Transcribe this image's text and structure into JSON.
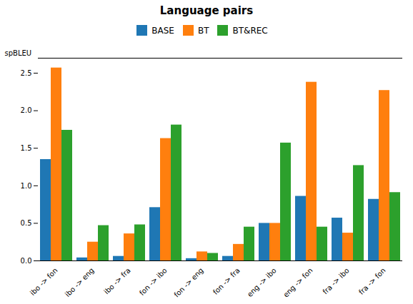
{
  "chart_data": {
    "type": "bar",
    "title": "Language pairs",
    "ylabel": "spBLEU",
    "categories": [
      "ibo -> fon",
      "ibo -> eng",
      "ibo -> fra",
      "fon -> ibo",
      "fon -> eng",
      "fon -> fra",
      "eng -> ibo",
      "eng -> fon",
      "fra -> ibo",
      "fra -> fon"
    ],
    "series": [
      {
        "name": "BASE",
        "color": "#1f77b4",
        "values": [
          1.35,
          0.04,
          0.06,
          0.71,
          0.03,
          0.06,
          0.5,
          0.86,
          0.57,
          0.82
        ]
      },
      {
        "name": "BT",
        "color": "#ff7f0e",
        "values": [
          2.57,
          0.25,
          0.36,
          1.63,
          0.12,
          0.22,
          0.5,
          2.38,
          0.37,
          2.27
        ]
      },
      {
        "name": "BT&REC",
        "color": "#2ca02c",
        "values": [
          1.74,
          0.47,
          0.48,
          1.81,
          0.1,
          0.45,
          1.57,
          0.45,
          1.27,
          0.91
        ]
      }
    ],
    "ylim": [
      0,
      2.7
    ],
    "yticks": [
      0,
      0.5,
      1,
      1.5,
      2,
      2.5
    ],
    "legend": "top"
  }
}
